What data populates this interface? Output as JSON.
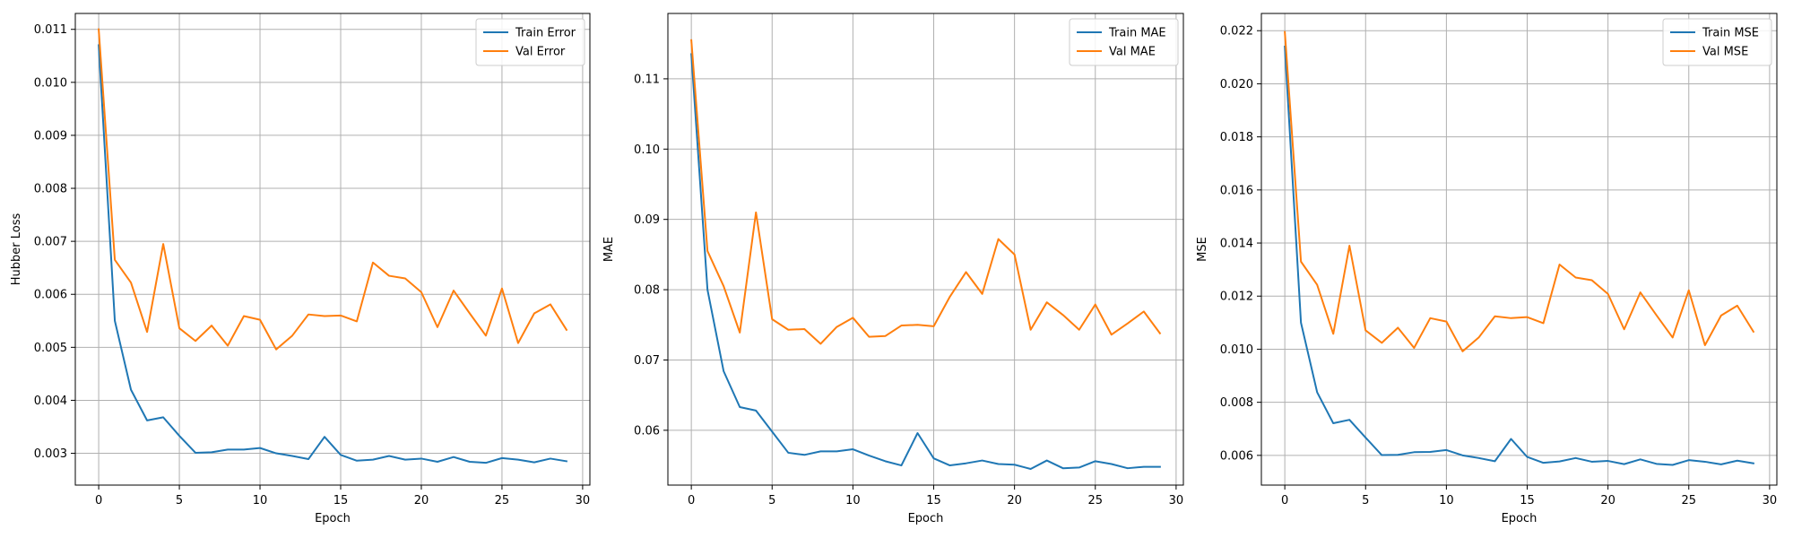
{
  "chart_data": [
    {
      "type": "line",
      "xlabel": "Epoch",
      "ylabel": "Hubber Loss",
      "xlim": [
        -1.45,
        30.45
      ],
      "ylim": [
        0.0024,
        0.0113
      ],
      "xticks": [
        0,
        5,
        10,
        15,
        20,
        25,
        30
      ],
      "xtick_labels": [
        "0",
        "5",
        "10",
        "15",
        "20",
        "25",
        "30"
      ],
      "yticks": [
        0.003,
        0.004,
        0.005,
        0.006,
        0.007,
        0.008,
        0.009,
        0.01,
        0.011
      ],
      "ytick_labels": [
        "0.003",
        "0.004",
        "0.005",
        "0.006",
        "0.007",
        "0.008",
        "0.009",
        "0.010",
        "0.011"
      ],
      "grid": true,
      "legend_position": "top-right",
      "x": [
        0,
        1,
        2,
        3,
        4,
        5,
        6,
        7,
        8,
        9,
        10,
        11,
        12,
        13,
        14,
        15,
        16,
        17,
        18,
        19,
        20,
        21,
        22,
        23,
        24,
        25,
        26,
        27,
        28,
        29
      ],
      "series": [
        {
          "name": "Train Error",
          "color": "#1f77b4",
          "values": [
            0.0107,
            0.0055,
            0.0042,
            0.00362,
            0.00368,
            0.00333,
            0.00301,
            0.00302,
            0.00307,
            0.00307,
            0.0031,
            0.003,
            0.00295,
            0.00289,
            0.00331,
            0.00297,
            0.00286,
            0.00288,
            0.00295,
            0.00288,
            0.0029,
            0.00284,
            0.00293,
            0.00284,
            0.00282,
            0.00291,
            0.00288,
            0.00283,
            0.0029,
            0.00285
          ]
        },
        {
          "name": "Val Error",
          "color": "#ff7f0e",
          "values": [
            0.011,
            0.00665,
            0.00622,
            0.00529,
            0.00695,
            0.00536,
            0.00512,
            0.00541,
            0.00503,
            0.00559,
            0.00552,
            0.00496,
            0.00522,
            0.00562,
            0.00559,
            0.0056,
            0.00549,
            0.0066,
            0.00635,
            0.0063,
            0.00604,
            0.00538,
            0.00607,
            0.00564,
            0.00522,
            0.00611,
            0.00508,
            0.00564,
            0.00581,
            0.00533
          ]
        }
      ]
    },
    {
      "type": "line",
      "xlabel": "Epoch",
      "ylabel": "MAE",
      "xlim": [
        -1.45,
        30.45
      ],
      "ylim": [
        0.0522,
        0.1193
      ],
      "xticks": [
        0,
        5,
        10,
        15,
        20,
        25,
        30
      ],
      "xtick_labels": [
        "0",
        "5",
        "10",
        "15",
        "20",
        "25",
        "30"
      ],
      "yticks": [
        0.06,
        0.07,
        0.08,
        0.09,
        0.1,
        0.11
      ],
      "ytick_labels": [
        "0.06",
        "0.07",
        "0.08",
        "0.09",
        "0.10",
        "0.11"
      ],
      "grid": true,
      "legend_position": "top-right",
      "x": [
        0,
        1,
        2,
        3,
        4,
        5,
        6,
        7,
        8,
        9,
        10,
        11,
        12,
        13,
        14,
        15,
        16,
        17,
        18,
        19,
        20,
        21,
        22,
        23,
        24,
        25,
        26,
        27,
        28,
        29
      ],
      "series": [
        {
          "name": "Train MAE",
          "color": "#1f77b4",
          "values": [
            0.1135,
            0.08,
            0.0684,
            0.0633,
            0.0628,
            0.0598,
            0.0568,
            0.0565,
            0.057,
            0.057,
            0.0573,
            0.0564,
            0.0556,
            0.055,
            0.0596,
            0.056,
            0.055,
            0.0553,
            0.0557,
            0.0552,
            0.0551,
            0.0545,
            0.0557,
            0.0546,
            0.0547,
            0.0556,
            0.0552,
            0.0546,
            0.0548,
            0.0548
          ]
        },
        {
          "name": "Val MAE",
          "color": "#ff7f0e",
          "values": [
            0.1155,
            0.0855,
            0.0805,
            0.0739,
            0.091,
            0.0758,
            0.0743,
            0.0744,
            0.0723,
            0.0747,
            0.076,
            0.0733,
            0.0734,
            0.0749,
            0.075,
            0.0748,
            0.079,
            0.0825,
            0.0794,
            0.0872,
            0.085,
            0.0743,
            0.0782,
            0.0764,
            0.0743,
            0.0779,
            0.0736,
            0.0752,
            0.0769,
            0.0738
          ]
        }
      ]
    },
    {
      "type": "line",
      "xlabel": "Epoch",
      "ylabel": "MSE",
      "xlim": [
        -1.45,
        30.45
      ],
      "ylim": [
        0.00488,
        0.02265
      ],
      "xticks": [
        0,
        5,
        10,
        15,
        20,
        25,
        30
      ],
      "xtick_labels": [
        "0",
        "5",
        "10",
        "15",
        "20",
        "25",
        "30"
      ],
      "yticks": [
        0.006,
        0.008,
        0.01,
        0.012,
        0.014,
        0.016,
        0.018,
        0.02,
        0.022
      ],
      "ytick_labels": [
        "0.006",
        "0.008",
        "0.010",
        "0.012",
        "0.014",
        "0.016",
        "0.018",
        "0.020",
        "0.022"
      ],
      "grid": true,
      "legend_position": "top-right",
      "x": [
        0,
        1,
        2,
        3,
        4,
        5,
        6,
        7,
        8,
        9,
        10,
        11,
        12,
        13,
        14,
        15,
        16,
        17,
        18,
        19,
        20,
        21,
        22,
        23,
        24,
        25,
        26,
        27,
        28,
        29
      ],
      "series": [
        {
          "name": "Train MSE",
          "color": "#1f77b4",
          "values": [
            0.0214,
            0.011,
            0.00838,
            0.00721,
            0.00734,
            0.00667,
            0.00601,
            0.00602,
            0.00612,
            0.00613,
            0.0062,
            0.006,
            0.0059,
            0.00578,
            0.00662,
            0.00594,
            0.00572,
            0.00577,
            0.0059,
            0.00576,
            0.00579,
            0.00567,
            0.00585,
            0.00568,
            0.00564,
            0.00582,
            0.00576,
            0.00566,
            0.0058,
            0.0057
          ]
        },
        {
          "name": "Val MSE",
          "color": "#ff7f0e",
          "values": [
            0.02195,
            0.0133,
            0.01243,
            0.01058,
            0.0139,
            0.01071,
            0.01024,
            0.01081,
            0.01005,
            0.01117,
            0.01104,
            0.00992,
            0.01044,
            0.01124,
            0.01117,
            0.01121,
            0.01098,
            0.01319,
            0.0127,
            0.0126,
            0.01208,
            0.01075,
            0.01214,
            0.01128,
            0.01044,
            0.01222,
            0.01015,
            0.01127,
            0.01164,
            0.01066
          ]
        }
      ]
    }
  ]
}
